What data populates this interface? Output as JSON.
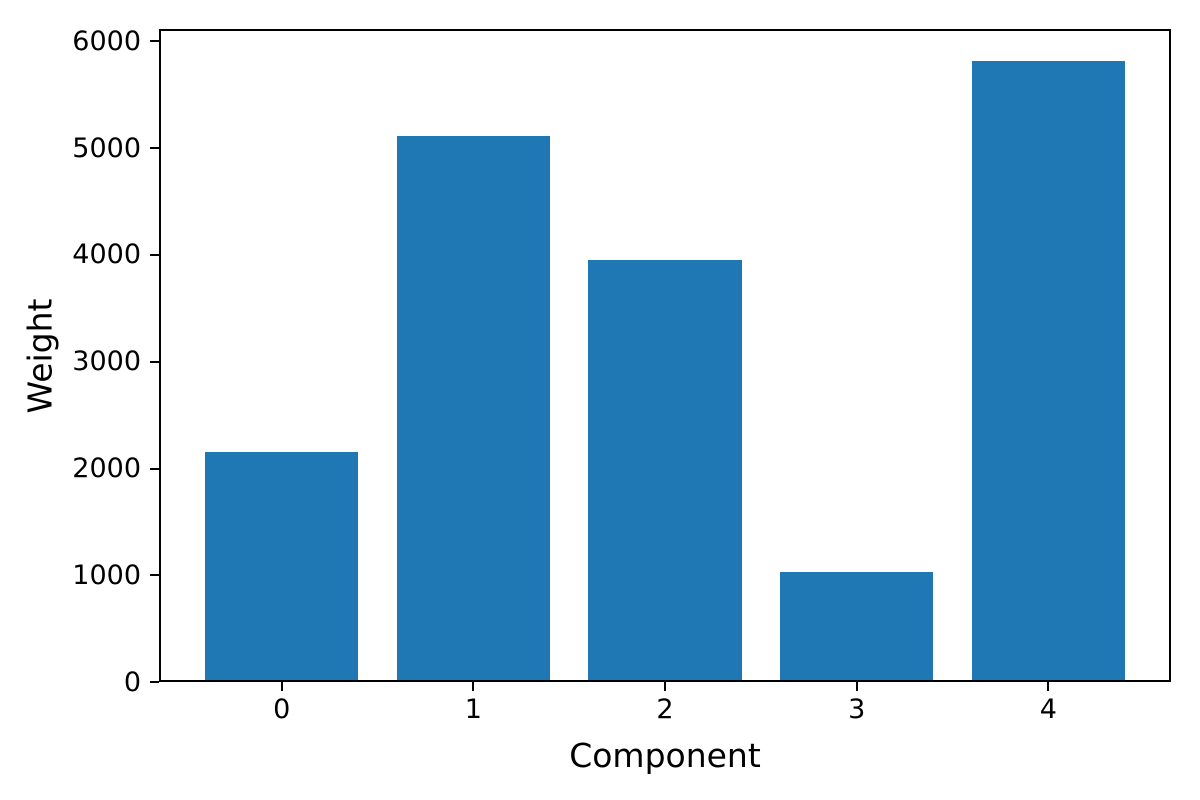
{
  "figure": {
    "background": "#ffffff",
    "text_color": "#000000"
  },
  "chart_data": {
    "type": "bar",
    "title": "",
    "xlabel": "Component",
    "ylabel": "Weight",
    "categories": [
      "0",
      "1",
      "2",
      "3",
      "4"
    ],
    "values": [
      2150,
      5110,
      3950,
      1030,
      5820
    ],
    "yticks": [
      0,
      1000,
      2000,
      3000,
      4000,
      5000,
      6000
    ],
    "xlim": [
      -0.64,
      4.64
    ],
    "ylim": [
      0,
      6116
    ],
    "bar_width": 0.8,
    "bar_color": "#1f77b4",
    "grid": false,
    "legend_position": "none"
  }
}
